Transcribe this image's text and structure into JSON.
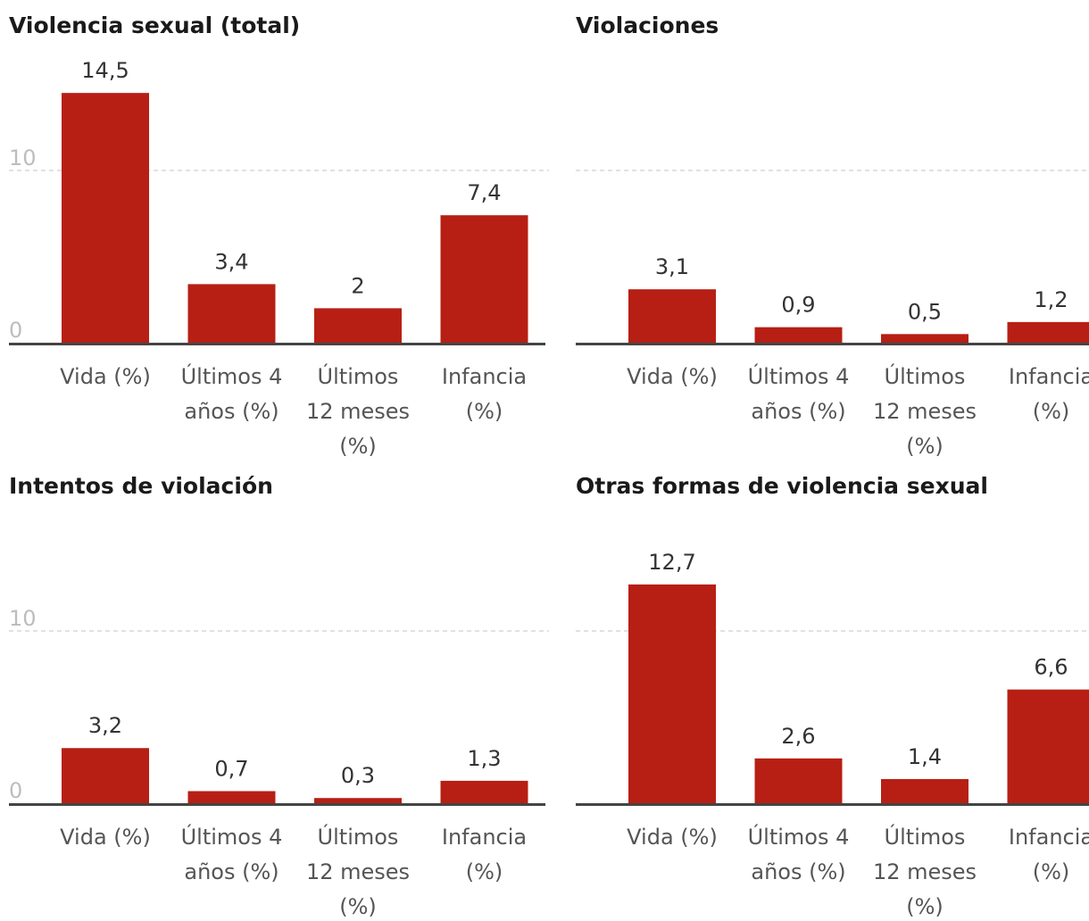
{
  "colors": {
    "bar": "#b71f14",
    "axis": "#444444",
    "grid": "#cfcfcf"
  },
  "chart_data": [
    {
      "type": "bar",
      "title": "Violencia sexual (total)",
      "categories": [
        "Vida (%)",
        "Últimos 4 años (%)",
        "Últimos 12 meses (%)",
        "Infancia (%)"
      ],
      "values": [
        14.5,
        3.4,
        2,
        7.4
      ],
      "value_labels": [
        "14,5",
        "3,4",
        "2",
        "7,4"
      ],
      "category_lines": [
        [
          "Vida (%)"
        ],
        [
          "Últimos 4",
          "años (%)"
        ],
        [
          "Últimos",
          "12 meses",
          "(%)"
        ],
        [
          "Infancia",
          "(%)"
        ]
      ],
      "ylim": [
        0,
        15
      ],
      "yticks": [
        0,
        10
      ],
      "ytick_labels": [
        "0",
        "10"
      ],
      "grid": true
    },
    {
      "type": "bar",
      "title": "Violaciones",
      "categories": [
        "Vida (%)",
        "Últimos 4 años (%)",
        "Últimos 12 meses (%)",
        "Infancia (%)"
      ],
      "values": [
        3.1,
        0.9,
        0.5,
        1.2
      ],
      "value_labels": [
        "3,1",
        "0,9",
        "0,5",
        "1,2"
      ],
      "category_lines": [
        [
          "Vida (%)"
        ],
        [
          "Últimos 4",
          "años (%)"
        ],
        [
          "Últimos",
          "12 meses",
          "(%)"
        ],
        [
          "Infancia",
          "(%)"
        ]
      ],
      "ylim": [
        0,
        15
      ],
      "yticks": [
        0,
        10
      ],
      "ytick_labels": [
        "",
        ""
      ],
      "grid": true
    },
    {
      "type": "bar",
      "title": "Intentos de violación",
      "categories": [
        "Vida (%)",
        "Últimos 4 años (%)",
        "Últimos 12 meses (%)",
        "Infancia (%)"
      ],
      "values": [
        3.2,
        0.7,
        0.3,
        1.3
      ],
      "value_labels": [
        "3,2",
        "0,7",
        "0,3",
        "1,3"
      ],
      "category_lines": [
        [
          "Vida (%)"
        ],
        [
          "Últimos 4",
          "años (%)"
        ],
        [
          "Últimos",
          "12 meses",
          "(%)"
        ],
        [
          "Infancia",
          "(%)"
        ]
      ],
      "ylim": [
        0,
        15
      ],
      "yticks": [
        0,
        10
      ],
      "ytick_labels": [
        "0",
        "10"
      ],
      "grid": true
    },
    {
      "type": "bar",
      "title": "Otras formas de violencia sexual",
      "categories": [
        "Vida (%)",
        "Últimos 4 años (%)",
        "Últimos 12 meses (%)",
        "Infancia (%)"
      ],
      "values": [
        12.7,
        2.6,
        1.4,
        6.6
      ],
      "value_labels": [
        "12,7",
        "2,6",
        "1,4",
        "6,6"
      ],
      "category_lines": [
        [
          "Vida (%)"
        ],
        [
          "Últimos 4",
          "años (%)"
        ],
        [
          "Últimos",
          "12 meses",
          "(%)"
        ],
        [
          "Infancia",
          "(%)"
        ]
      ],
      "ylim": [
        0,
        15
      ],
      "yticks": [
        0,
        10
      ],
      "ytick_labels": [
        "",
        ""
      ],
      "grid": true
    }
  ]
}
